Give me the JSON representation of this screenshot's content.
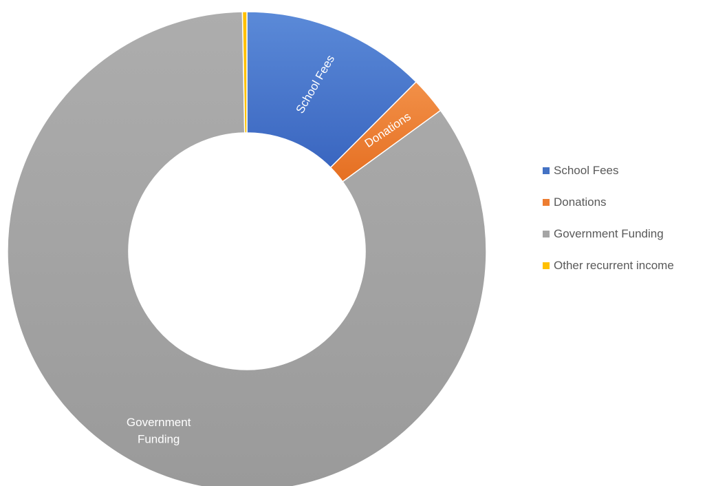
{
  "chart_data": {
    "type": "pie",
    "variant": "donut",
    "categories": [
      "School Fees",
      "Donations",
      "Government Funding",
      "Other recurrent income"
    ],
    "values": [
      12.5,
      2.5,
      84.7,
      0.3
    ],
    "unit": "%",
    "colors": [
      "#4472C4",
      "#ED7D31",
      "#A5A5A5",
      "#FFC000"
    ],
    "slice_labels": [
      "School Fees",
      "Donations",
      "Government Funding",
      "Other recurrent income"
    ],
    "legend": {
      "position": "right",
      "entries": [
        "School Fees",
        "Donations",
        "Government Funding",
        "Other recurrent income"
      ]
    },
    "title": ""
  }
}
